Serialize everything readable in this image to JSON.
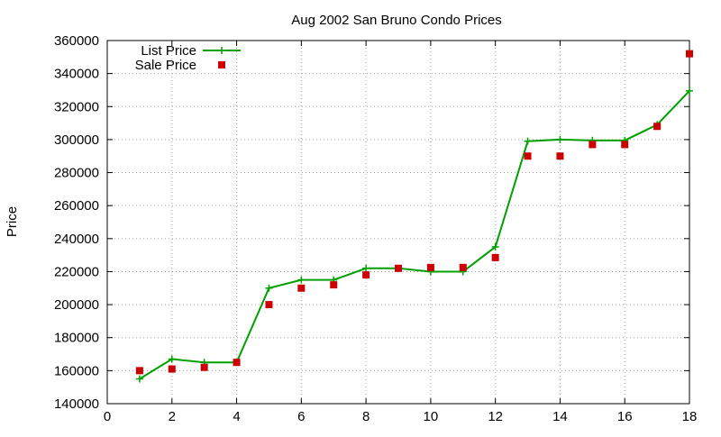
{
  "chart_data": {
    "type": "line",
    "title": "Aug 2002 San Bruno Condo Prices",
    "xlabel": "",
    "ylabel": "Price",
    "xlim": [
      0,
      18
    ],
    "ylim": [
      140000,
      360000
    ],
    "x_ticks": [
      "0",
      "2",
      "4",
      "6",
      "8",
      "10",
      "12",
      "14",
      "16",
      "18"
    ],
    "y_ticks": [
      "140000",
      "160000",
      "180000",
      "200000",
      "220000",
      "240000",
      "260000",
      "280000",
      "300000",
      "320000",
      "340000",
      "360000"
    ],
    "x_tick_values": [
      0,
      2,
      4,
      6,
      8,
      10,
      12,
      14,
      16,
      18
    ],
    "y_tick_values": [
      140000,
      160000,
      180000,
      200000,
      220000,
      240000,
      260000,
      280000,
      300000,
      320000,
      340000,
      360000
    ],
    "grid": true,
    "legend_position": "top-left",
    "series": [
      {
        "name": "List Price",
        "style": "lines+points",
        "marker": "plus",
        "color": "#00a000",
        "x": [
          1,
          2,
          3,
          4,
          5,
          6,
          7,
          8,
          9,
          10,
          11,
          12,
          13,
          14,
          15,
          16,
          17,
          18
        ],
        "values": [
          155000,
          167000,
          165000,
          165000,
          210000,
          215000,
          215000,
          222000,
          222000,
          220000,
          220000,
          235000,
          299000,
          300000,
          299500,
          299500,
          309000,
          329500
        ]
      },
      {
        "name": "Sale Price",
        "style": "points",
        "marker": "square",
        "color": "#cc0000",
        "x": [
          1,
          2,
          3,
          4,
          5,
          6,
          7,
          8,
          9,
          10,
          11,
          12,
          13,
          14,
          15,
          16,
          17,
          18
        ],
        "values": [
          160000,
          161000,
          162000,
          165000,
          200000,
          210000,
          212000,
          218000,
          222000,
          222500,
          222500,
          228500,
          290000,
          290000,
          297000,
          297000,
          308000,
          352000
        ]
      }
    ]
  }
}
